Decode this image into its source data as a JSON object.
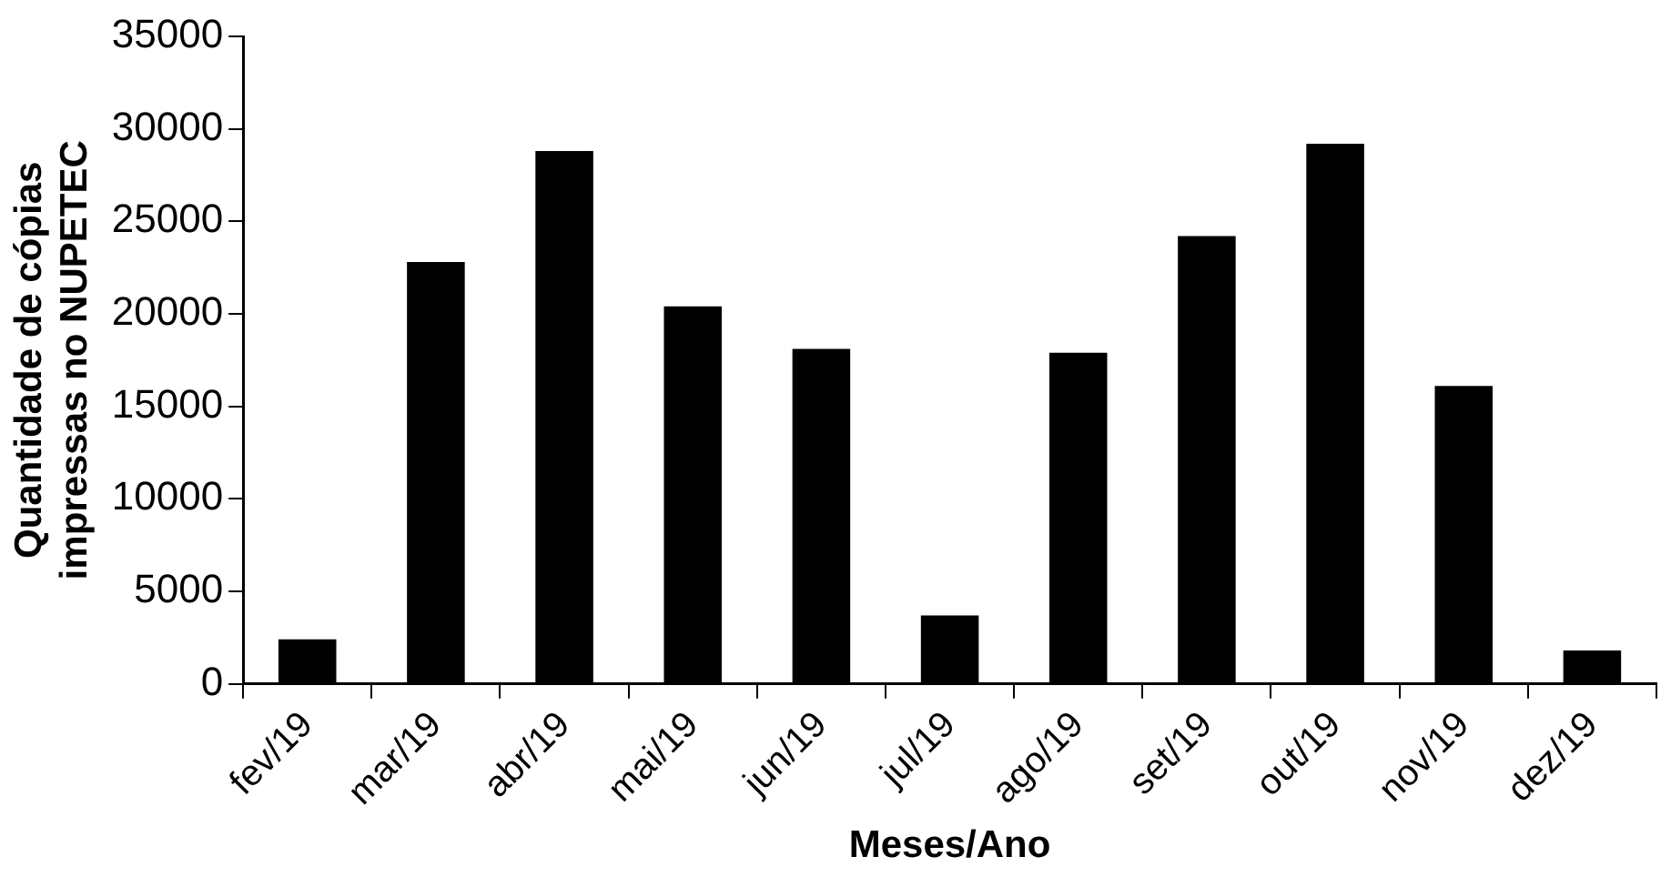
{
  "chart_data": {
    "type": "bar",
    "xlabel": "Meses/Ano",
    "ylabel": "Quantidade de cópias impressas no NUPETEC",
    "categories": [
      "fev/19",
      "mar/19",
      "abr/19",
      "mai/19",
      "jun/19",
      "jul/19",
      "ago/19",
      "set/19",
      "out/19",
      "nov/19",
      "dez/19"
    ],
    "values": [
      2400,
      22800,
      28800,
      20400,
      18100,
      3700,
      17900,
      24200,
      29200,
      16100,
      1800
    ],
    "color": "#000000",
    "ylim": [
      0,
      35000
    ],
    "yticks": [
      0,
      5000,
      10000,
      15000,
      20000,
      25000,
      30000,
      35000
    ],
    "grid": false,
    "legend": false
  }
}
